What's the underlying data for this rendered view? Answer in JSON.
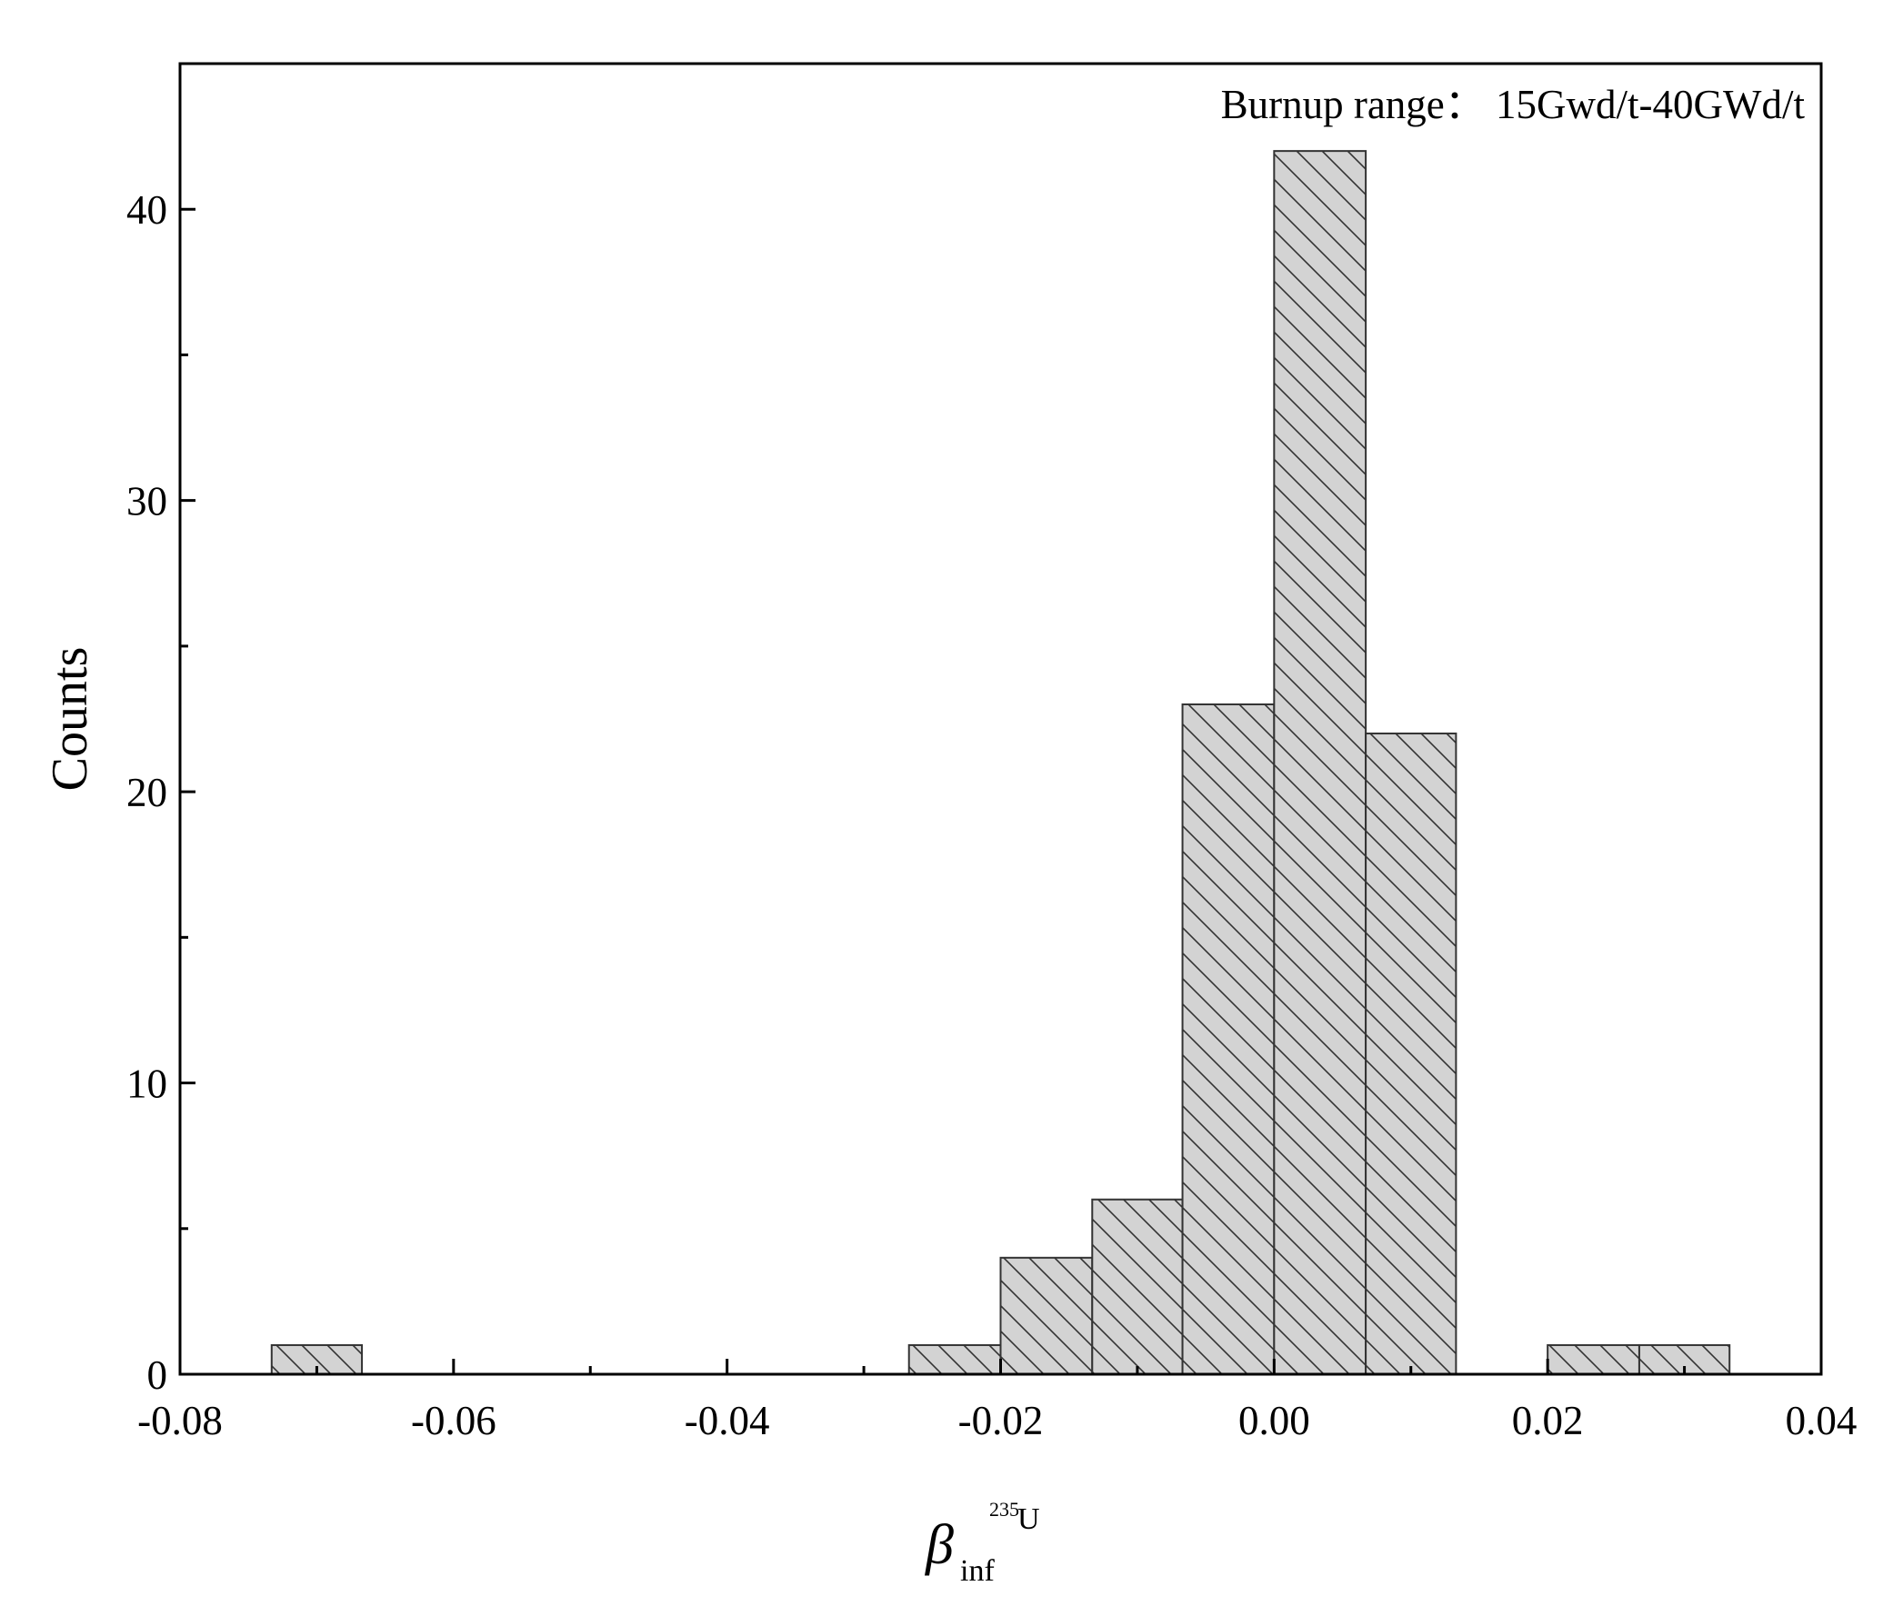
{
  "chart_data": {
    "type": "bar",
    "subtype": "histogram",
    "annotation": "Burnup range：  15Gwd/t-40GWd/t",
    "xlabel": {
      "symbol": "β",
      "subscript": "inf",
      "superscript": "235",
      "suffix": "U"
    },
    "ylabel": "Counts",
    "xlim": [
      -0.08,
      0.04
    ],
    "ylim": [
      0,
      45
    ],
    "x_ticks": [
      -0.08,
      -0.06,
      -0.04,
      -0.02,
      0.0,
      0.02,
      0.04
    ],
    "x_tick_labels": [
      "-0.08",
      "-0.06",
      "-0.04",
      "-0.02",
      "0.00",
      "0.02",
      "0.04"
    ],
    "y_ticks": [
      0,
      10,
      20,
      30,
      40
    ],
    "y_tick_labels": [
      "0",
      "10",
      "20",
      "30",
      "40"
    ],
    "bins": [
      {
        "x0": -0.0733,
        "x1": -0.0667,
        "count": 1
      },
      {
        "x0": -0.0267,
        "x1": -0.02,
        "count": 1
      },
      {
        "x0": -0.02,
        "x1": -0.0133,
        "count": 4
      },
      {
        "x0": -0.0133,
        "x1": -0.0067,
        "count": 6
      },
      {
        "x0": -0.0067,
        "x1": 0.0,
        "count": 23
      },
      {
        "x0": 0.0,
        "x1": 0.0067,
        "count": 42
      },
      {
        "x0": 0.0067,
        "x1": 0.0133,
        "count": 22
      },
      {
        "x0": 0.02,
        "x1": 0.0267,
        "count": 1
      },
      {
        "x0": 0.0267,
        "x1": 0.0333,
        "count": 1
      }
    ],
    "bar_fill": "#d3d3d3",
    "bar_stroke": "#333333",
    "hatch": "diagonal",
    "grid": false
  }
}
